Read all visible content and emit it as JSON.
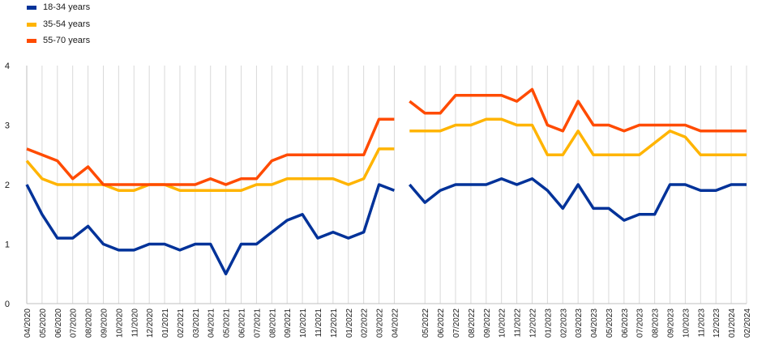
{
  "chart_data": {
    "type": "line",
    "title": "",
    "xlabel": "",
    "ylabel": "",
    "ylim": [
      0,
      4
    ],
    "yticks": [
      "0",
      "1",
      "2",
      "3",
      "4"
    ],
    "grid": "vertical",
    "legend_position": "top-left",
    "x": [
      "04/2020",
      "05/2020",
      "06/2020",
      "07/2020",
      "08/2020",
      "09/2020",
      "10/2020",
      "11/2020",
      "12/2020",
      "01/2021",
      "02/2021",
      "03/2021",
      "04/2021",
      "05/2021",
      "06/2021",
      "07/2021",
      "08/2021",
      "09/2021",
      "10/2021",
      "11/2021",
      "12/2021",
      "01/2022",
      "02/2022",
      "03/2022",
      "04/2022",
      "04/2022",
      "05/2022",
      "06/2022",
      "07/2022",
      "08/2022",
      "09/2022",
      "10/2022",
      "11/2022",
      "12/2022",
      "01/2023",
      "02/2023",
      "03/2023",
      "04/2023",
      "05/2023",
      "06/2023",
      "07/2023",
      "08/2023",
      "09/2023",
      "10/2023",
      "11/2023",
      "12/2023",
      "01/2024",
      "02/2024"
    ],
    "series": [
      {
        "name": "18-34 years",
        "color": "#003299",
        "values": [
          2.0,
          1.5,
          1.1,
          1.1,
          1.3,
          1.0,
          0.9,
          0.9,
          1.0,
          1.0,
          0.9,
          1.0,
          1.0,
          0.5,
          1.0,
          1.0,
          1.2,
          1.4,
          1.5,
          1.1,
          1.2,
          1.1,
          1.2,
          2.0,
          1.9,
          2.0,
          1.7,
          1.9,
          2.0,
          2.0,
          2.0,
          2.1,
          2.0,
          2.1,
          1.9,
          1.6,
          2.0,
          1.6,
          1.6,
          1.4,
          1.5,
          1.5,
          2.0,
          2.0,
          1.9,
          1.9,
          2.0,
          2.0
        ],
        "break_after_index": 24
      },
      {
        "name": "35-54 years",
        "color": "#FFB400",
        "values": [
          2.4,
          2.1,
          2.0,
          2.0,
          2.0,
          2.0,
          1.9,
          1.9,
          2.0,
          2.0,
          1.9,
          1.9,
          1.9,
          1.9,
          1.9,
          2.0,
          2.0,
          2.1,
          2.1,
          2.1,
          2.1,
          2.0,
          2.1,
          2.6,
          2.6,
          2.9,
          2.9,
          2.9,
          3.0,
          3.0,
          3.1,
          3.1,
          3.0,
          3.0,
          2.5,
          2.5,
          2.9,
          2.5,
          2.5,
          2.5,
          2.5,
          2.7,
          2.9,
          2.8,
          2.5,
          2.5,
          2.5,
          2.5
        ],
        "break_after_index": 24
      },
      {
        "name": "55-70 years",
        "color": "#FF4B00",
        "values": [
          2.6,
          2.5,
          2.4,
          2.1,
          2.3,
          2.0,
          2.0,
          2.0,
          2.0,
          2.0,
          2.0,
          2.0,
          2.1,
          2.0,
          2.1,
          2.1,
          2.4,
          2.5,
          2.5,
          2.5,
          2.5,
          2.5,
          2.5,
          3.1,
          3.1,
          3.4,
          3.2,
          3.2,
          3.5,
          3.5,
          3.5,
          3.5,
          3.4,
          3.6,
          3.0,
          2.9,
          3.4,
          3.0,
          3.0,
          2.9,
          3.0,
          3.0,
          3.0,
          3.0,
          2.9,
          2.9,
          2.9,
          2.9
        ],
        "break_after_index": 24
      }
    ]
  }
}
